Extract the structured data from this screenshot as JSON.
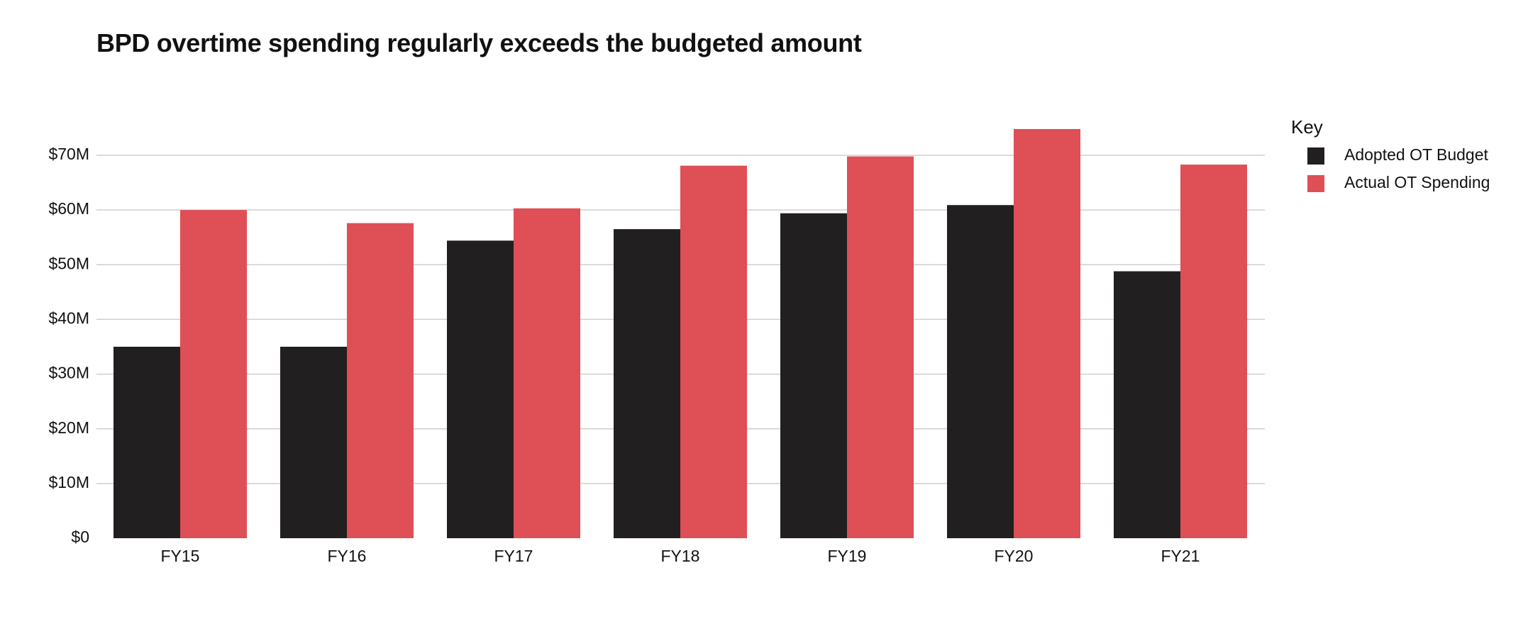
{
  "chart_data": {
    "type": "bar",
    "title": "BPD overtime spending regularly exceeds the budgeted amount",
    "xlabel": "",
    "ylabel": "",
    "categories": [
      "FY15",
      "FY16",
      "FY17",
      "FY18",
      "FY19",
      "FY20",
      "FY21"
    ],
    "series": [
      {
        "name": "Adopted OT Budget",
        "color": "#221f20",
        "values": [
          35,
          35,
          54.4,
          56.5,
          59.4,
          60.9,
          48.8
        ]
      },
      {
        "name": "Actual OT Spending",
        "color": "#de4f56",
        "values": [
          60,
          57.6,
          60.3,
          68.1,
          69.8,
          74.8,
          68.3
        ]
      }
    ],
    "ylim": [
      0,
      70
    ],
    "yticks": [
      0,
      10,
      20,
      30,
      40,
      50,
      60,
      70
    ],
    "ytick_labels": [
      "$0",
      "$10M",
      "$20M",
      "$30M",
      "$40M",
      "$50M",
      "$60M",
      "$70M"
    ],
    "grid": true,
    "legend": {
      "title": "Key",
      "placement": "top-right"
    }
  }
}
